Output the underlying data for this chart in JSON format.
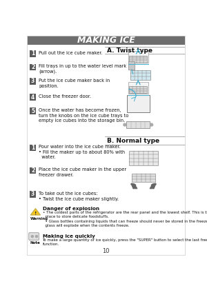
{
  "title": "MAKING ICE",
  "title_bg": "#6e6e6e",
  "title_color": "#ffffff",
  "page_number": "10",
  "bg_color": "#ffffff",
  "section_a_title": "A. Twist type",
  "section_b_title": "B. Normal type",
  "twist_steps": [
    {
      "num": "1",
      "text": "Pull out the ice cube maker."
    },
    {
      "num": "2",
      "text": "Fill trays in up to the water level mark\n(arrow)."
    },
    {
      "num": "3",
      "text": "Put the ice cube maker back in\nposition."
    },
    {
      "num": "4",
      "text": "Close the freezer door."
    },
    {
      "num": "5",
      "text": "Once the water has become frozen,\nturn the knobs on the ice cube trays to\nempty ice cubes into the storage bin."
    }
  ],
  "normal_steps": [
    {
      "num": "1",
      "text": "Pour water into the ice cube maker.\n• Fill the maker up to about 80% with\n  water."
    },
    {
      "num": "2",
      "text": "Place the ice cube maker in the upper\nfreezer drawer."
    },
    {
      "num": "3",
      "text": "To take out the ice cubes:\n• Twist the ice cube maker slightly."
    }
  ],
  "warning_title": "Danger of explosion",
  "warning_body": "• The coldest parts of the refrigerator are the rear panel and the lowest shelf. This is the best\n  place to store delicate foodstuffs.\n  • Glass bottles containing liquids that can freeze should never be stored in the freezer as the\n  glass will explode when the contents freeze.",
  "note_title": "Making ice quickly",
  "note_body": "To make a large quantity of ice quickly, press the \"SUPER\" button to select the last freeze\nfunction.",
  "step_bg": "#5a5a5a",
  "accent_blue": "#4ab0d0",
  "text_color": "#111111",
  "gray_line": "#aaaaaa"
}
